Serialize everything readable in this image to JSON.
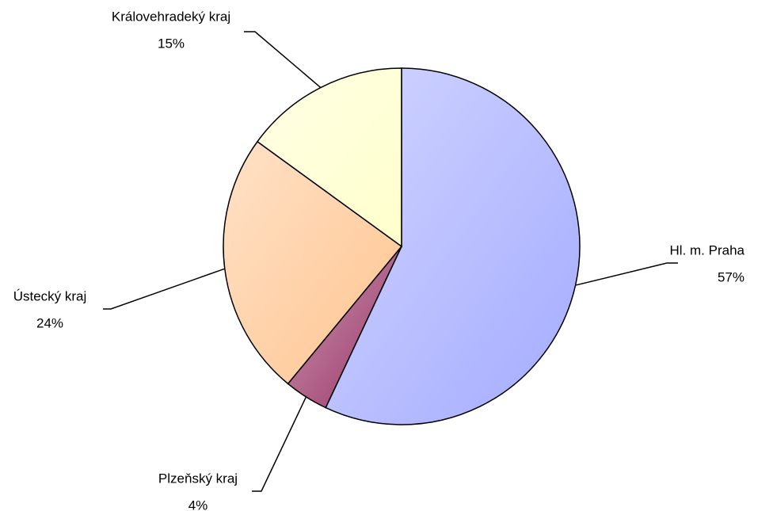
{
  "chart_data": {
    "type": "pie",
    "categories": [
      "Hl. m. Praha",
      "Plzeňský kraj",
      "Ústecký kraj",
      "Královehradeký kraj"
    ],
    "values": [
      57,
      4,
      24,
      15
    ],
    "value_labels": [
      "57%",
      "4%",
      "24%",
      "15%"
    ],
    "colors": [
      "#a4abff",
      "#993366",
      "#ffc48f",
      "#ffffcc"
    ]
  }
}
